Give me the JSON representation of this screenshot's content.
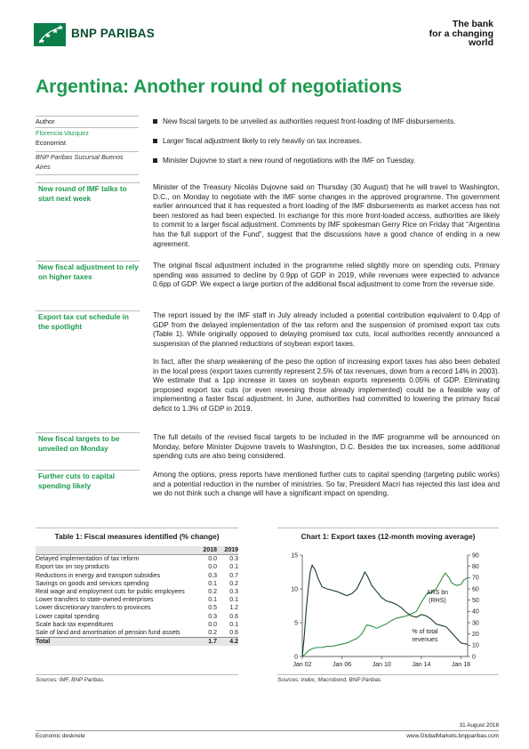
{
  "header": {
    "brand": "BNP PARIBAS",
    "tagline": [
      "The bank",
      "for a changing",
      "world"
    ]
  },
  "title": "Argentina: Another round of negotiations",
  "author": {
    "label": "Author",
    "name": "Florencia Vazquez",
    "role": "Economist",
    "affiliation": "BNP Paribas Sucursal Buenos Aires"
  },
  "bullets": [
    "New fiscal targets to be unveiled as authorities request front-loading of IMF disbursements.",
    "Larger fiscal adjustment likely to rely heavily on tax increases.",
    "Minister Dujovne to start a new round of negotiations with the IMF on Tuesday."
  ],
  "sections": [
    {
      "heading": "New round of IMF talks to start next week",
      "paragraphs": [
        "Minister of the Treasury Nicolás Dujovne said on Thursday (30 August) that he will travel to Washington, D.C., on Monday to negotiate with the IMF some changes in the approved programme. The government earlier announced that it has requested a front loading of the IMF disbursements as market access has not been restored as had been expected. In exchange for this more front-loaded access, authorities are likely to commit to a larger fiscal adjustment. Comments by IMF spokesman Gerry Rice on Friday that “Argentina has the full support of the Fund”, suggest that the discussions have a good chance of ending in a new agreement."
      ]
    },
    {
      "heading": "New fiscal adjustment to rely on higher taxes",
      "paragraphs": [
        "The original fiscal adjustment included in the programme relied slightly more on spending cuts. Primary spending was assumed to decline by 0.9pp of GDP in 2019, while revenues were expected to advance 0.6pp of GDP. We expect a large portion of the additional fiscal adjustment to come from the revenue side."
      ]
    },
    {
      "heading": "Export tax cut schedule in the spotlight",
      "paragraphs": [
        "The report issued by the IMF staff in July already included a potential contribution equivalent to 0.4pp of GDP from the delayed implementation of the tax reform and the suspension of promised export tax cuts (Table 1). While originally opposed to delaying promised tax cuts, local authorities recently announced a suspension of the planned reductions of soybean export taxes.",
        "In fact, after the sharp weakening of the peso the option of increasing export taxes has also been debated in the local press (export taxes currently represent 2.5% of tax revenues, down from a record 14% in 2003). We estimate that a 1pp increase in taxes on soybean exports represents 0.05% of GDP. Eliminating proposed export tax cuts (or even reversing those already implemented) could be a feasible way of implementing a faster fiscal adjustment. In June, authorities had committed to lowering the primary fiscal deficit to 1.3% of GDP in 2019."
      ]
    },
    {
      "heading": "New fiscal targets to be unveiled on Monday",
      "paragraphs": [
        "The full details of the revised fiscal targets to be included in the IMF programme will be announced on Monday, before Minister Dujovne travels to Washington, D.C. Besides the tax increases, some additional spending cuts are also being considered."
      ]
    },
    {
      "heading": "Further cuts to capital spending likely",
      "paragraphs": [
        "Among the options, press reports have mentioned further cuts to capital spending (targeting public works) and a potential reduction in the number of ministries. So far, President Macri has rejected this last idea and we do not think such a change will have a significant impact on spending."
      ]
    }
  ],
  "table": {
    "title": "Table 1: Fiscal measures identified (% change)",
    "columns": [
      "",
      "2018",
      "2019"
    ],
    "rows": [
      [
        "Delayed implementation of tax reform",
        "0.0",
        "0.3"
      ],
      [
        "Export tax on soy products",
        "0.0",
        "0.1"
      ],
      [
        "Reductions in energy and transport subsidies",
        "0.3",
        "0.7"
      ],
      [
        "Savings on goods and services spending",
        "0.1",
        "0.2"
      ],
      [
        "Real wage and employment cuts for public employees",
        "0.2",
        "0.3"
      ],
      [
        "Lower transfers to state-owned enterprises",
        "0.1",
        "0.1"
      ],
      [
        "Lower discretionary transfers to provinces",
        "0.5",
        "1.2"
      ],
      [
        "Lower capital spending",
        "0.3",
        "0.6"
      ],
      [
        "Scale back tax expenditures",
        "0.0",
        "0.1"
      ],
      [
        "Sale of land and amortisation of pension fund assets",
        "0.2",
        "0.6"
      ]
    ],
    "total": [
      "Total",
      "1.7",
      "4.2"
    ],
    "source": "Sources: IMF, BNP Paribas."
  },
  "chart_data": {
    "type": "line",
    "title": "Chart 1: Export taxes (12-month moving average)",
    "x_ticks": [
      "Jan 02",
      "Jan 06",
      "Jan 10",
      "Jan 14",
      "Jan 18"
    ],
    "x_range": [
      2002.0,
      2018.67
    ],
    "ylim_left": [
      0,
      15
    ],
    "yticks_left": [
      "0",
      "5",
      "10",
      "15"
    ],
    "ylim_right": [
      0,
      90
    ],
    "yticks_right": [
      "0",
      "10",
      "20",
      "30",
      "40",
      "50",
      "60",
      "70",
      "80",
      "90"
    ],
    "grid": false,
    "series": [
      {
        "name": "ARS bn (RHS)",
        "axis": "right",
        "color": "#2f8f3f",
        "points": [
          [
            2002.0,
            0
          ],
          [
            2002.3,
            2
          ],
          [
            2002.6,
            5
          ],
          [
            2003.0,
            7
          ],
          [
            2003.5,
            8
          ],
          [
            2004.0,
            8
          ],
          [
            2004.5,
            9
          ],
          [
            2005.0,
            9
          ],
          [
            2005.5,
            10
          ],
          [
            2006.0,
            11
          ],
          [
            2006.5,
            12
          ],
          [
            2007.0,
            14
          ],
          [
            2007.5,
            16
          ],
          [
            2008.0,
            20
          ],
          [
            2008.5,
            28
          ],
          [
            2009.0,
            27
          ],
          [
            2009.5,
            25
          ],
          [
            2010.0,
            27
          ],
          [
            2010.5,
            29
          ],
          [
            2011.0,
            32
          ],
          [
            2011.5,
            34
          ],
          [
            2012.0,
            35
          ],
          [
            2012.5,
            36
          ],
          [
            2013.0,
            38
          ],
          [
            2013.5,
            40
          ],
          [
            2014.0,
            48
          ],
          [
            2014.5,
            55
          ],
          [
            2015.0,
            57
          ],
          [
            2015.5,
            60
          ],
          [
            2016.0,
            68
          ],
          [
            2016.4,
            74
          ],
          [
            2016.8,
            70
          ],
          [
            2017.0,
            66
          ],
          [
            2017.3,
            64
          ],
          [
            2017.6,
            63
          ],
          [
            2018.0,
            64
          ],
          [
            2018.3,
            68
          ],
          [
            2018.67,
            70
          ]
        ]
      },
      {
        "name": "% of total revenues",
        "axis": "left",
        "color": "#173d23",
        "points": [
          [
            2002.0,
            0
          ],
          [
            2002.2,
            3
          ],
          [
            2002.4,
            7
          ],
          [
            2002.6,
            10
          ],
          [
            2002.8,
            12.5
          ],
          [
            2003.0,
            13.5
          ],
          [
            2003.3,
            12.8
          ],
          [
            2003.6,
            11.5
          ],
          [
            2004.0,
            10.3
          ],
          [
            2004.5,
            10.0
          ],
          [
            2005.0,
            9.8
          ],
          [
            2005.5,
            9.6
          ],
          [
            2006.0,
            9.3
          ],
          [
            2006.5,
            9.0
          ],
          [
            2007.0,
            9.3
          ],
          [
            2007.5,
            10.0
          ],
          [
            2008.0,
            11.5
          ],
          [
            2008.3,
            12.5
          ],
          [
            2008.6,
            11.8
          ],
          [
            2009.0,
            10.5
          ],
          [
            2009.5,
            9.6
          ],
          [
            2010.0,
            8.7
          ],
          [
            2010.5,
            8.2
          ],
          [
            2011.0,
            8.0
          ],
          [
            2011.5,
            7.7
          ],
          [
            2012.0,
            7.2
          ],
          [
            2012.5,
            6.5
          ],
          [
            2013.0,
            6.0
          ],
          [
            2013.5,
            5.8
          ],
          [
            2014.0,
            6.2
          ],
          [
            2014.5,
            6.0
          ],
          [
            2015.0,
            5.5
          ],
          [
            2015.5,
            4.8
          ],
          [
            2016.0,
            4.6
          ],
          [
            2016.5,
            4.4
          ],
          [
            2017.0,
            3.6
          ],
          [
            2017.5,
            2.8
          ],
          [
            2017.8,
            2.3
          ],
          [
            2018.0,
            2.0
          ],
          [
            2018.3,
            1.9
          ],
          [
            2018.67,
            1.8
          ]
        ]
      }
    ],
    "annotations": [
      {
        "text": "ARS bn (RHS)",
        "series": 0
      },
      {
        "text": "% of total revenues",
        "series": 1
      }
    ],
    "source": "Sources: Indec, Macrobond, BNP Paribas"
  },
  "footer": {
    "date": "31 August 2018",
    "left": "Economic desknote",
    "right": "www.GlobalMarkets.bnpparibas.com"
  }
}
